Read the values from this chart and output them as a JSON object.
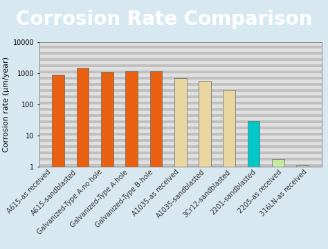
{
  "title": "Corrosion Rate Comparison",
  "title_bg_color_left": "#5bbccc",
  "title_bg_color_right": "#6ab0cc",
  "ylabel": "Corrosion rate (μm/year)",
  "ylim_min": 1,
  "ylim_max": 10000,
  "categories": [
    "A615-as received",
    "A615-sandblasted",
    "Galvanized-Type A-no hole",
    "Galvanized-Type A-hole",
    "Galvanized-Type B-hole",
    "A1035-as received",
    "A1035-sandblasted",
    "3Cr12-sandblasted",
    "2201-sandblasted",
    "2205-as received",
    "316LN-as received"
  ],
  "values": [
    900,
    1500,
    1100,
    1150,
    1200,
    700,
    580,
    290,
    30,
    1.8,
    1.1
  ],
  "bar_colors": [
    "#e86010",
    "#e86010",
    "#e86010",
    "#e86010",
    "#e86010",
    "#e8d5a0",
    "#e8d5a0",
    "#e8d5a0",
    "#00c8c8",
    "#c8e8a0",
    "#c0c8a0"
  ],
  "bg_color": "#d8e8f0",
  "plot_bg_color": "#e8e8e8",
  "stripe_color_dark": "#c0c0c0",
  "stripe_color_light": "#e0e0e0",
  "bar_edge_color": "#666666",
  "title_text_color": "#ffffff",
  "title_fontsize": 20,
  "axis_label_fontsize": 8,
  "tick_fontsize": 7
}
